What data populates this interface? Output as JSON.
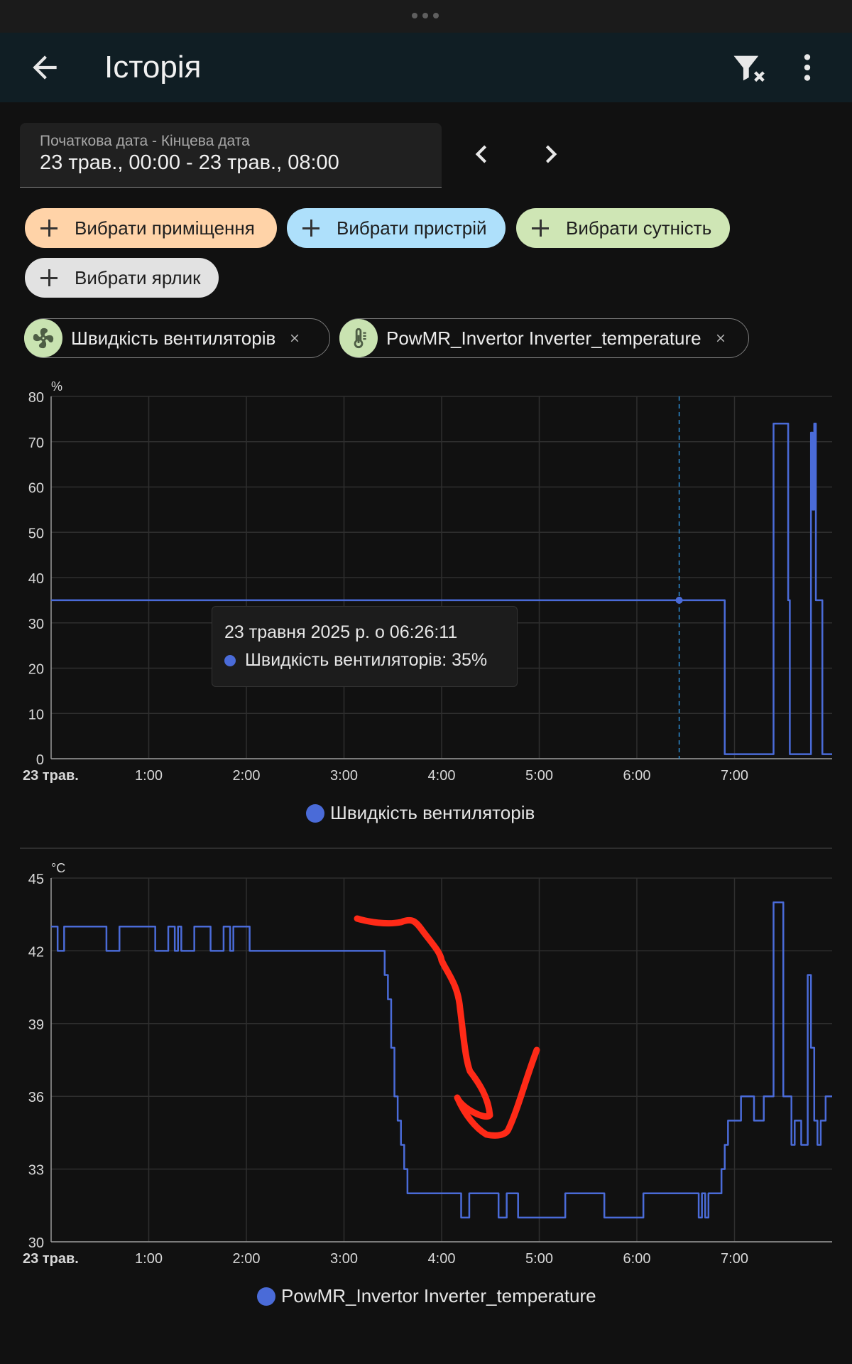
{
  "app": {
    "title": "Історія",
    "icons": {
      "back": "arrow-left-icon",
      "filter": "filter-remove-icon",
      "more": "dots-vertical-icon"
    }
  },
  "date_range": {
    "label": "Початкова дата - Кінцева дата",
    "value": "23 трав., 00:00 - 23 трав., 08:00",
    "icons": {
      "prev": "chevron-left-icon",
      "next": "chevron-right-icon"
    }
  },
  "target_pickers": [
    {
      "label": "Вибрати приміщення",
      "color": "#ffd3a8"
    },
    {
      "label": "Вибрати пристрій",
      "color": "#aee0fb"
    },
    {
      "label": "Вибрати сутність",
      "color": "#cfe6b5"
    },
    {
      "label": "Вибрати ярлик",
      "color": "#e2e2e2"
    }
  ],
  "selected_entities": [
    {
      "label": "Швидкість вентиляторів",
      "icon": "fan-icon"
    },
    {
      "label": "PowMR_Invertor Inverter_temperature",
      "icon": "thermometer-icon"
    }
  ],
  "tooltip": {
    "time": "23 травня 2025 р. о 06:26:11",
    "entry": "Швидкість вентиляторів: 35%"
  },
  "chart_data": [
    {
      "type": "line",
      "unit": "%",
      "ylim": [
        0,
        80
      ],
      "yticks": [
        "0",
        "10",
        "20",
        "30",
        "40",
        "50",
        "60",
        "70",
        "80"
      ],
      "xlim": [
        "00:00",
        "08:00"
      ],
      "xticks": [
        "23 трав.",
        "1:00",
        "2:00",
        "3:00",
        "4:00",
        "5:00",
        "6:00",
        "7:00"
      ],
      "grid": true,
      "legend_position": "bottom-center",
      "cursor_time": "06:26",
      "series": [
        {
          "name": "Швидкість вентиляторів",
          "color": "#4a6bd8",
          "step": true,
          "x": [
            "00:00",
            "06:50",
            "06:54",
            "07:23",
            "07:24",
            "07:33",
            "07:34",
            "07:46",
            "07:47",
            "07:48",
            "07:49",
            "07:50",
            "07:54",
            "07:55",
            "08:00"
          ],
          "y": [
            35,
            35,
            1,
            1,
            74,
            35,
            1,
            1,
            72,
            55,
            74,
            35,
            1,
            1,
            1
          ]
        }
      ]
    },
    {
      "type": "line",
      "unit": "°C",
      "ylim": [
        30,
        45
      ],
      "yticks": [
        "30",
        "33",
        "36",
        "39",
        "42",
        "45"
      ],
      "xlim": [
        "00:00",
        "08:00"
      ],
      "xticks": [
        "23 трав.",
        "1:00",
        "2:00",
        "3:00",
        "4:00",
        "5:00",
        "6:00",
        "7:00"
      ],
      "grid": true,
      "legend_position": "bottom-center",
      "series": [
        {
          "name": "PowMR_Invertor Inverter_temperature",
          "color": "#4a6bd8",
          "step": true,
          "x": [
            "00:00",
            "00:04",
            "00:08",
            "00:34",
            "00:42",
            "01:04",
            "01:12",
            "01:16",
            "01:18",
            "01:20",
            "01:28",
            "01:38",
            "01:46",
            "01:50",
            "01:52",
            "02:02",
            "03:25",
            "03:27",
            "03:29",
            "03:31",
            "03:33",
            "03:35",
            "03:37",
            "03:39",
            "03:41",
            "03:43",
            "04:12",
            "04:17",
            "04:23",
            "04:35",
            "04:40",
            "04:47",
            "05:16",
            "05:22",
            "05:40",
            "06:04",
            "06:26",
            "06:38",
            "06:40",
            "06:42",
            "06:44",
            "06:52",
            "06:54",
            "06:56",
            "07:02",
            "07:04",
            "07:12",
            "07:18",
            "07:24",
            "07:30",
            "07:35",
            "07:37",
            "07:41",
            "07:45",
            "07:47",
            "07:49",
            "07:51",
            "07:53",
            "07:56",
            "08:00"
          ],
          "y": [
            43,
            42,
            43,
            42,
            43,
            42,
            43,
            42,
            43,
            42,
            43,
            42,
            43,
            42,
            43,
            42,
            41,
            40,
            38,
            36,
            35,
            34,
            33,
            32,
            32,
            32,
            31,
            32,
            32,
            31,
            32,
            31,
            32,
            32,
            31,
            32,
            32,
            31,
            32,
            31,
            32,
            33,
            34,
            35,
            35,
            36,
            35,
            36,
            44,
            36,
            34,
            35,
            34,
            41,
            38,
            35,
            34,
            35,
            36,
            36
          ]
        }
      ]
    }
  ]
}
